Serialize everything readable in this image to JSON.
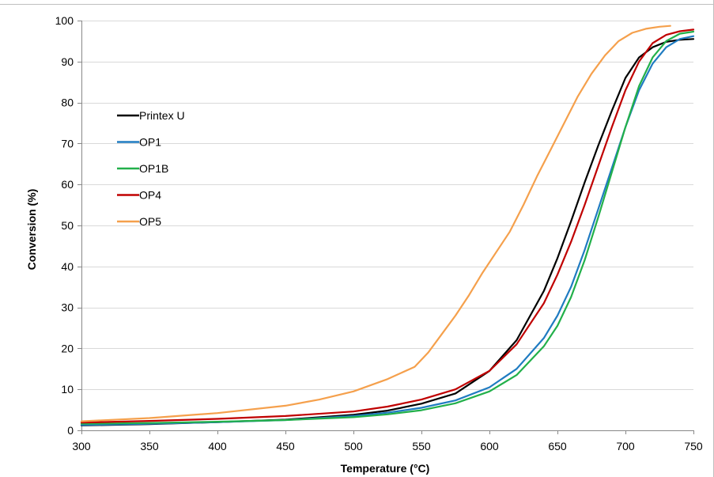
{
  "chart_data": {
    "type": "line",
    "title": "",
    "xlabel": "Temperature (°C)",
    "ylabel": "Conversion (%)",
    "xlim": [
      300,
      750
    ],
    "ylim": [
      0,
      100
    ],
    "xticks": [
      300,
      350,
      400,
      450,
      500,
      550,
      600,
      650,
      700,
      750
    ],
    "yticks": [
      0,
      10,
      20,
      30,
      40,
      50,
      60,
      70,
      80,
      90,
      100
    ],
    "grid": "horizontal",
    "legend_position": "left",
    "series": [
      {
        "name": "Printex  U",
        "color": "#000000",
        "x": [
          300,
          350,
          400,
          450,
          500,
          525,
          550,
          575,
          600,
          620,
          640,
          650,
          660,
          670,
          680,
          690,
          700,
          710,
          720,
          730,
          740,
          750
        ],
        "y": [
          1.2,
          1.5,
          2.0,
          2.6,
          3.8,
          4.8,
          6.5,
          9.0,
          14.5,
          22.0,
          34.0,
          42.0,
          51.0,
          60.5,
          69.5,
          78.0,
          86.0,
          91.0,
          93.5,
          94.8,
          95.3,
          95.5
        ]
      },
      {
        "name": "OP1",
        "color": "#1f7bc1",
        "x": [
          300,
          350,
          400,
          450,
          500,
          525,
          550,
          575,
          600,
          620,
          640,
          650,
          660,
          670,
          680,
          690,
          700,
          710,
          720,
          730,
          740,
          750
        ],
        "y": [
          1.3,
          1.6,
          2.0,
          2.5,
          3.5,
          4.3,
          5.5,
          7.3,
          10.5,
          15.0,
          22.5,
          28.0,
          35.0,
          44.0,
          54.0,
          64.0,
          74.0,
          83.0,
          89.5,
          93.5,
          95.5,
          96.2
        ]
      },
      {
        "name": "OP1B",
        "color": "#22b04a",
        "x": [
          300,
          350,
          400,
          450,
          500,
          525,
          550,
          575,
          600,
          620,
          640,
          650,
          660,
          670,
          680,
          690,
          700,
          710,
          720,
          730,
          740,
          750
        ],
        "y": [
          1.6,
          1.8,
          2.1,
          2.5,
          3.2,
          3.9,
          4.9,
          6.6,
          9.5,
          13.5,
          20.5,
          25.5,
          32.5,
          41.5,
          52.0,
          63.0,
          74.0,
          84.0,
          91.0,
          95.0,
          96.8,
          97.3
        ]
      },
      {
        "name": "OP4",
        "color": "#c00000",
        "x": [
          300,
          350,
          400,
          450,
          500,
          525,
          550,
          575,
          600,
          620,
          640,
          650,
          660,
          670,
          680,
          690,
          700,
          710,
          720,
          730,
          740,
          750
        ],
        "y": [
          1.9,
          2.3,
          2.8,
          3.5,
          4.6,
          5.8,
          7.5,
          10.0,
          14.5,
          21.0,
          31.0,
          38.0,
          46.0,
          55.0,
          64.5,
          74.0,
          83.0,
          90.0,
          94.5,
          96.5,
          97.4,
          97.8
        ]
      },
      {
        "name": "OP5",
        "color": "#f5a04c",
        "x": [
          300,
          350,
          400,
          450,
          475,
          500,
          525,
          545,
          555,
          565,
          575,
          585,
          595,
          605,
          615,
          625,
          635,
          645,
          655,
          665,
          675,
          685,
          695,
          705,
          715,
          725,
          733
        ],
        "y": [
          2.2,
          3.0,
          4.2,
          6.0,
          7.5,
          9.5,
          12.5,
          15.5,
          19.0,
          23.5,
          28.0,
          33.0,
          38.5,
          43.5,
          48.5,
          55.0,
          62.0,
          68.5,
          75.0,
          81.5,
          87.0,
          91.5,
          95.0,
          97.0,
          98.0,
          98.5,
          98.7
        ]
      }
    ]
  }
}
